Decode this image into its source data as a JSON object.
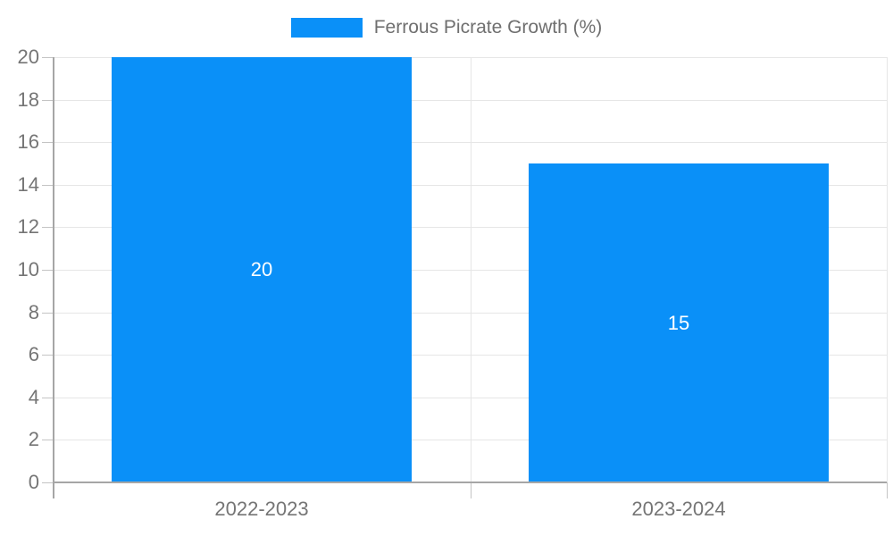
{
  "chart_data": {
    "type": "bar",
    "title": "",
    "legend": {
      "label": "Ferrous Picrate Growth (%)",
      "position": "top"
    },
    "categories": [
      "2022-2023",
      "2023-2024"
    ],
    "series": [
      {
        "name": "Ferrous Picrate Growth (%)",
        "values": [
          20,
          15
        ]
      }
    ],
    "data_labels": [
      "20",
      "15"
    ],
    "xlabel": "",
    "ylabel": "",
    "ylim": [
      0,
      20
    ],
    "ytick_step": 2,
    "yticks": [
      0,
      2,
      4,
      6,
      8,
      10,
      12,
      14,
      16,
      18,
      20
    ],
    "grid": true,
    "legend_position": "top",
    "colors": {
      "bar": "#0a90f8",
      "grid": "#e6e6e6",
      "axis": "#a6a6a6",
      "tick": "#c4c4c4",
      "tick_label": "#757575",
      "data_label": "#ffffff",
      "legend_text": "#6f6f6f",
      "background": "#ffffff"
    }
  }
}
